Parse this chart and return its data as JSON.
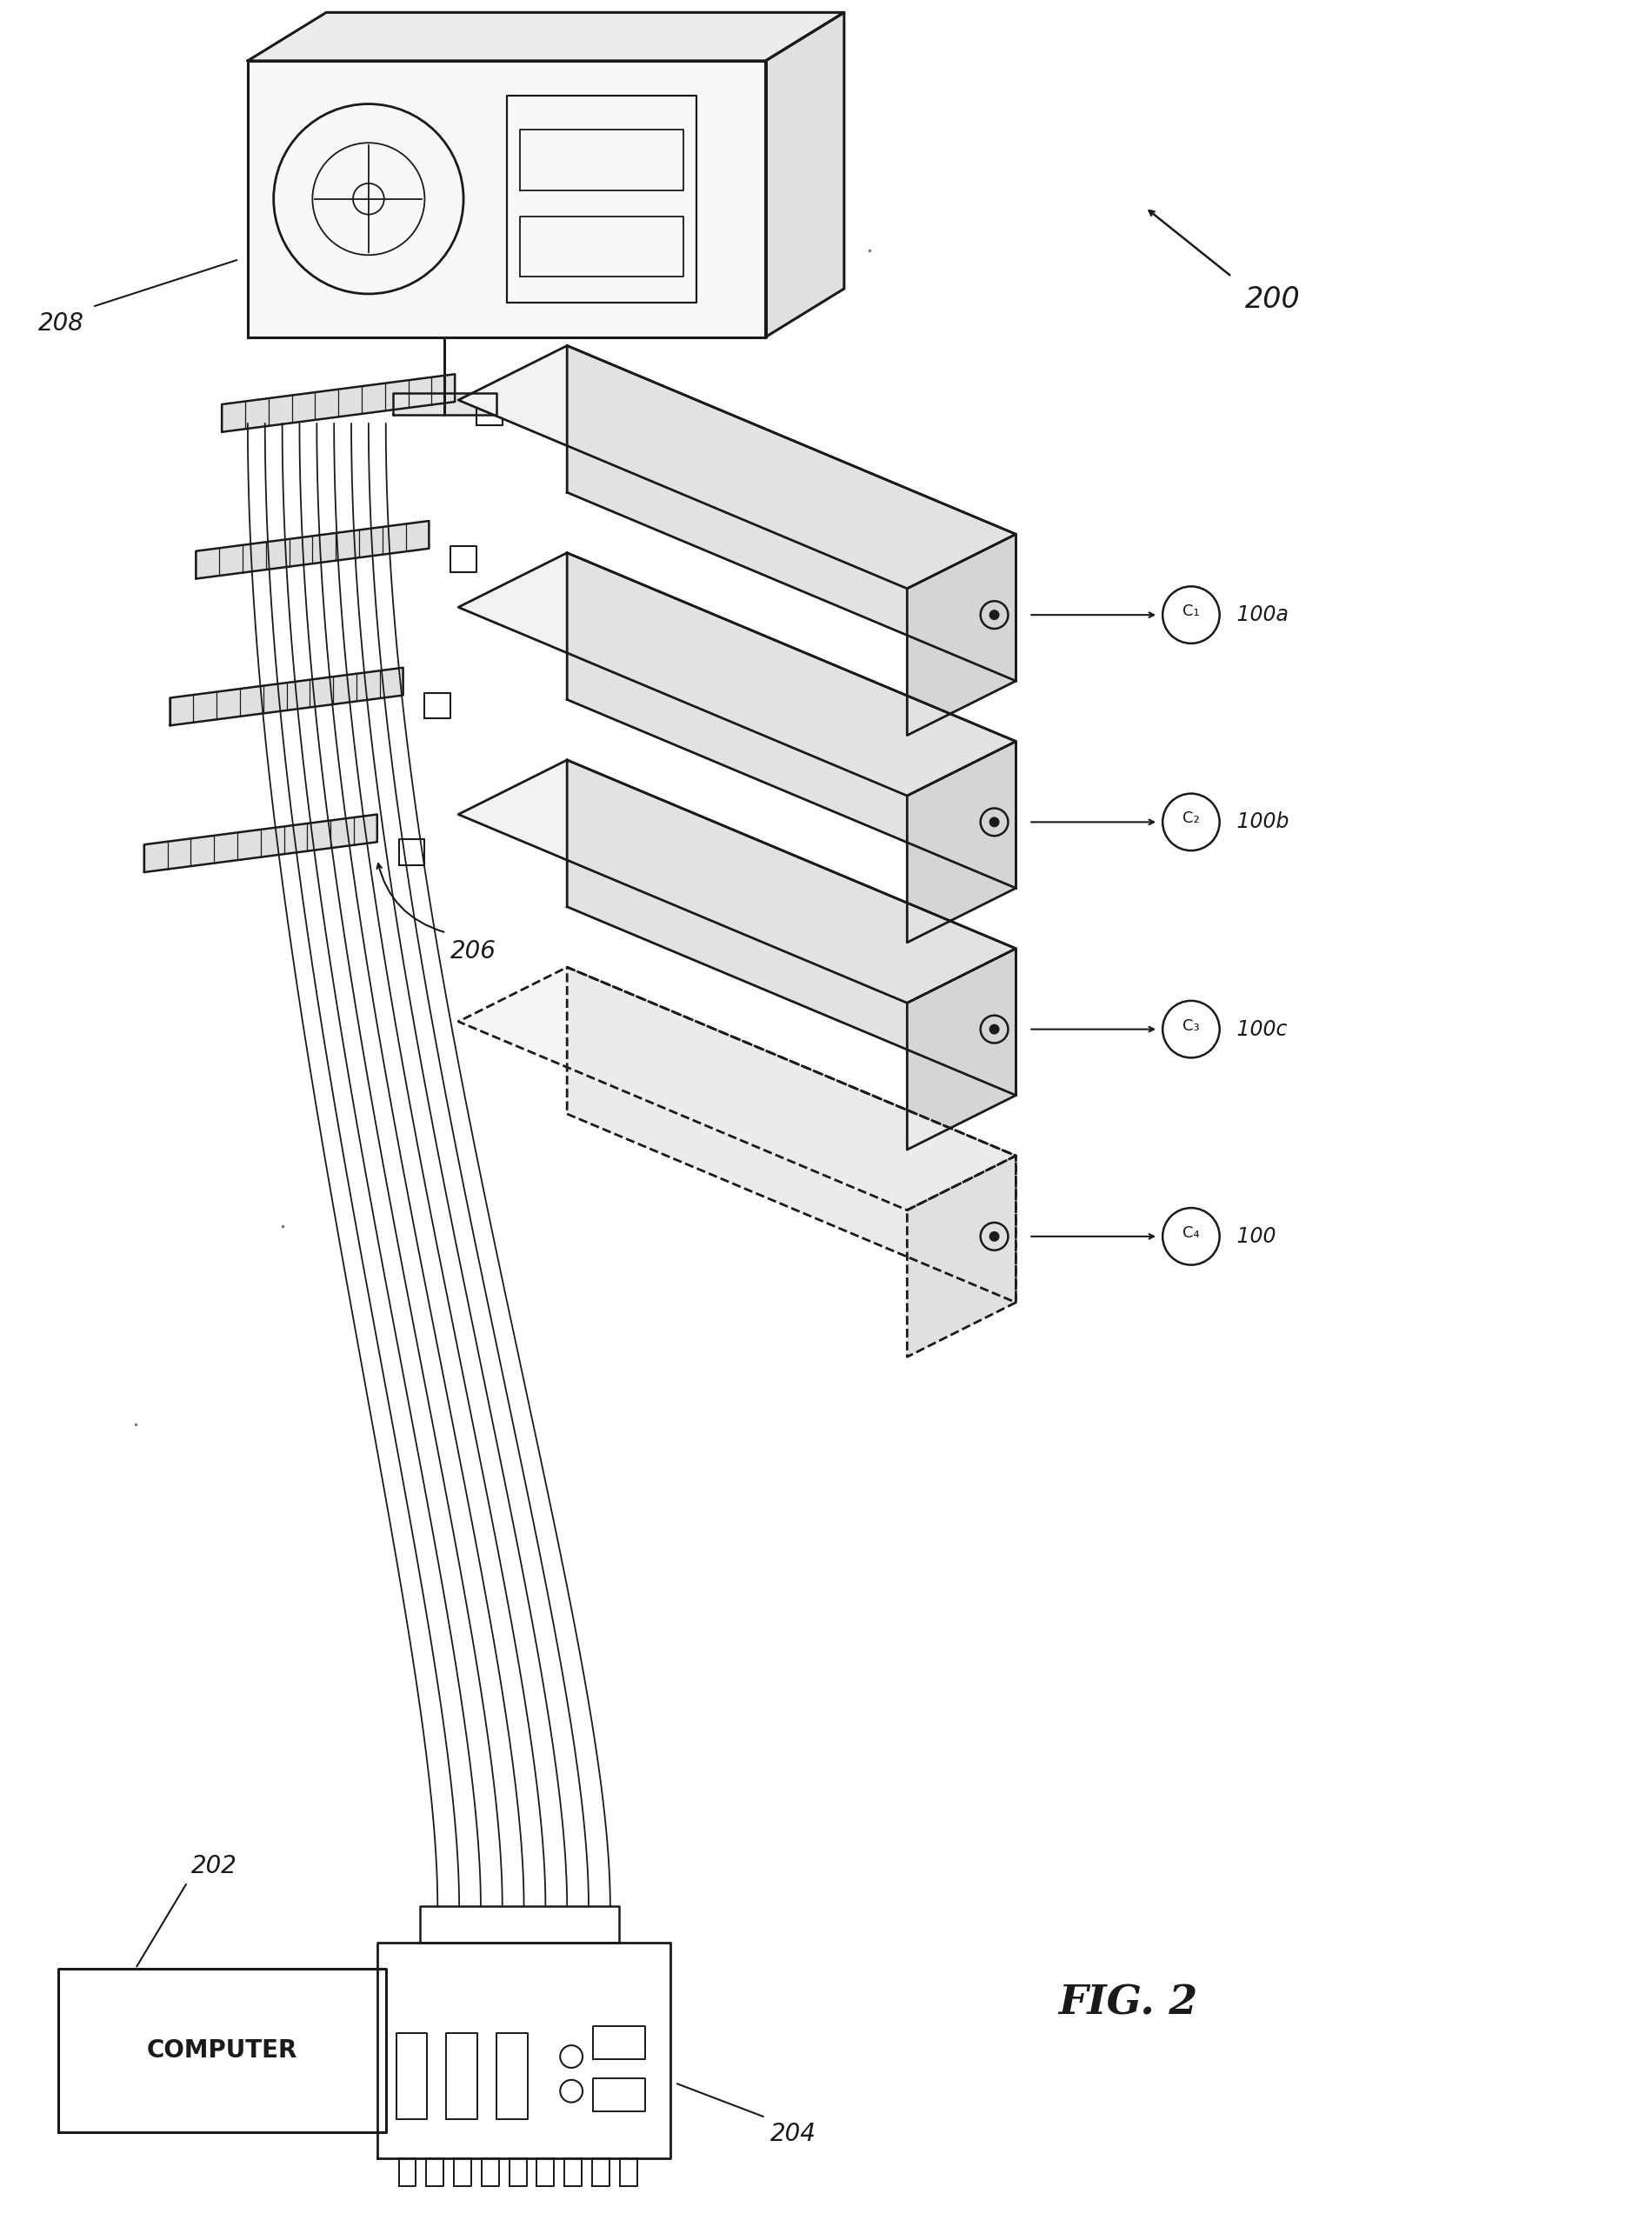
{
  "bg_color": "#ffffff",
  "line_color": "#1a1a1a",
  "line_width": 1.8,
  "fig_label": "FIG. 2",
  "ref_200": "200",
  "ref_202": "202",
  "ref_204": "204",
  "ref_206": "206",
  "ref_208": "208",
  "ref_100a": "100a",
  "ref_100b": "100b",
  "ref_100c": "100c",
  "ref_100": "100",
  "ref_c1": "C₁",
  "ref_c2": "C₂",
  "ref_c3": "C₃",
  "ref_c4": "C₄"
}
